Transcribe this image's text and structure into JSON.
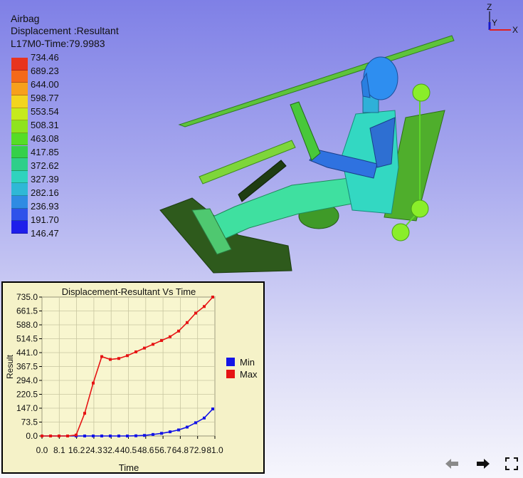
{
  "viewport": {
    "header": {
      "result_name": "Airbag",
      "result_type": "Displacement :Resultant",
      "time_info": "L17M0-Time:79.9983"
    },
    "legend": {
      "labels": [
        "734.46",
        "689.23",
        "644.00",
        "598.77",
        "553.54",
        "508.31",
        "463.08",
        "417.85",
        "372.62",
        "327.39",
        "282.16",
        "236.93",
        "191.70",
        "146.47"
      ],
      "colors": [
        "#e8341e",
        "#f4691a",
        "#f7a01c",
        "#f3d51f",
        "#c6ea1d",
        "#8fe31f",
        "#56dc26",
        "#35d04a",
        "#2ecf8a",
        "#2fd3be",
        "#2fb8d6",
        "#2f8be3",
        "#2e52ea",
        "#1e1eea"
      ]
    },
    "triad": {
      "z_label": "Z",
      "y_label": "Y",
      "x_label": "X",
      "x_color": "#e02020",
      "y_color": "#1818c8"
    }
  },
  "chart_data": {
    "type": "line",
    "title": "Displacement-Resultant Vs Time",
    "xlabel": "Time",
    "ylabel": "Result",
    "xlim": [
      0,
      81
    ],
    "ylim": [
      0,
      735
    ],
    "x_tick_labels": [
      "0.0",
      "8.1",
      "16.2",
      "24.3",
      "32.4",
      "40.5",
      "48.6",
      "56.7",
      "64.8",
      "72.9",
      "81.0"
    ],
    "y_tick_labels": [
      "735.0",
      "661.5",
      "588.0",
      "514.5",
      "441.0",
      "367.5",
      "294.0",
      "220.5",
      "147.0",
      "73.5",
      "0.0"
    ],
    "x_ticks": [
      0,
      8.1,
      16.2,
      24.3,
      32.4,
      40.5,
      48.6,
      56.7,
      64.8,
      72.9,
      81.0
    ],
    "y_ticks": [
      735.0,
      661.5,
      588.0,
      514.5,
      441.0,
      367.5,
      294.0,
      220.5,
      147.0,
      73.5,
      0.0
    ],
    "grid": true,
    "legend_position": "right",
    "series": [
      {
        "name": "Min",
        "color": "#1414e6",
        "x": [
          0,
          4,
          8,
          12,
          16,
          20,
          24,
          28,
          32,
          36,
          40,
          44,
          48,
          52,
          56,
          60,
          64,
          68,
          72,
          76,
          80
        ],
        "y": [
          0,
          0,
          0,
          0,
          0,
          0,
          0,
          0,
          0,
          0,
          0,
          1,
          3,
          8,
          14,
          22,
          32,
          47,
          70,
          95,
          143
        ]
      },
      {
        "name": "Max",
        "color": "#e61414",
        "x": [
          0,
          4,
          8,
          12,
          16,
          20,
          24,
          28,
          32,
          36,
          40,
          44,
          48,
          52,
          56,
          60,
          64,
          68,
          72,
          76,
          80
        ],
        "y": [
          0,
          0,
          0,
          0,
          5,
          120,
          280,
          420,
          405,
          410,
          425,
          445,
          465,
          485,
          505,
          525,
          555,
          600,
          650,
          685,
          735
        ]
      }
    ]
  },
  "nav": {
    "back_icon_color": "#8a8a8a",
    "forward_icon_color": "#111111"
  }
}
